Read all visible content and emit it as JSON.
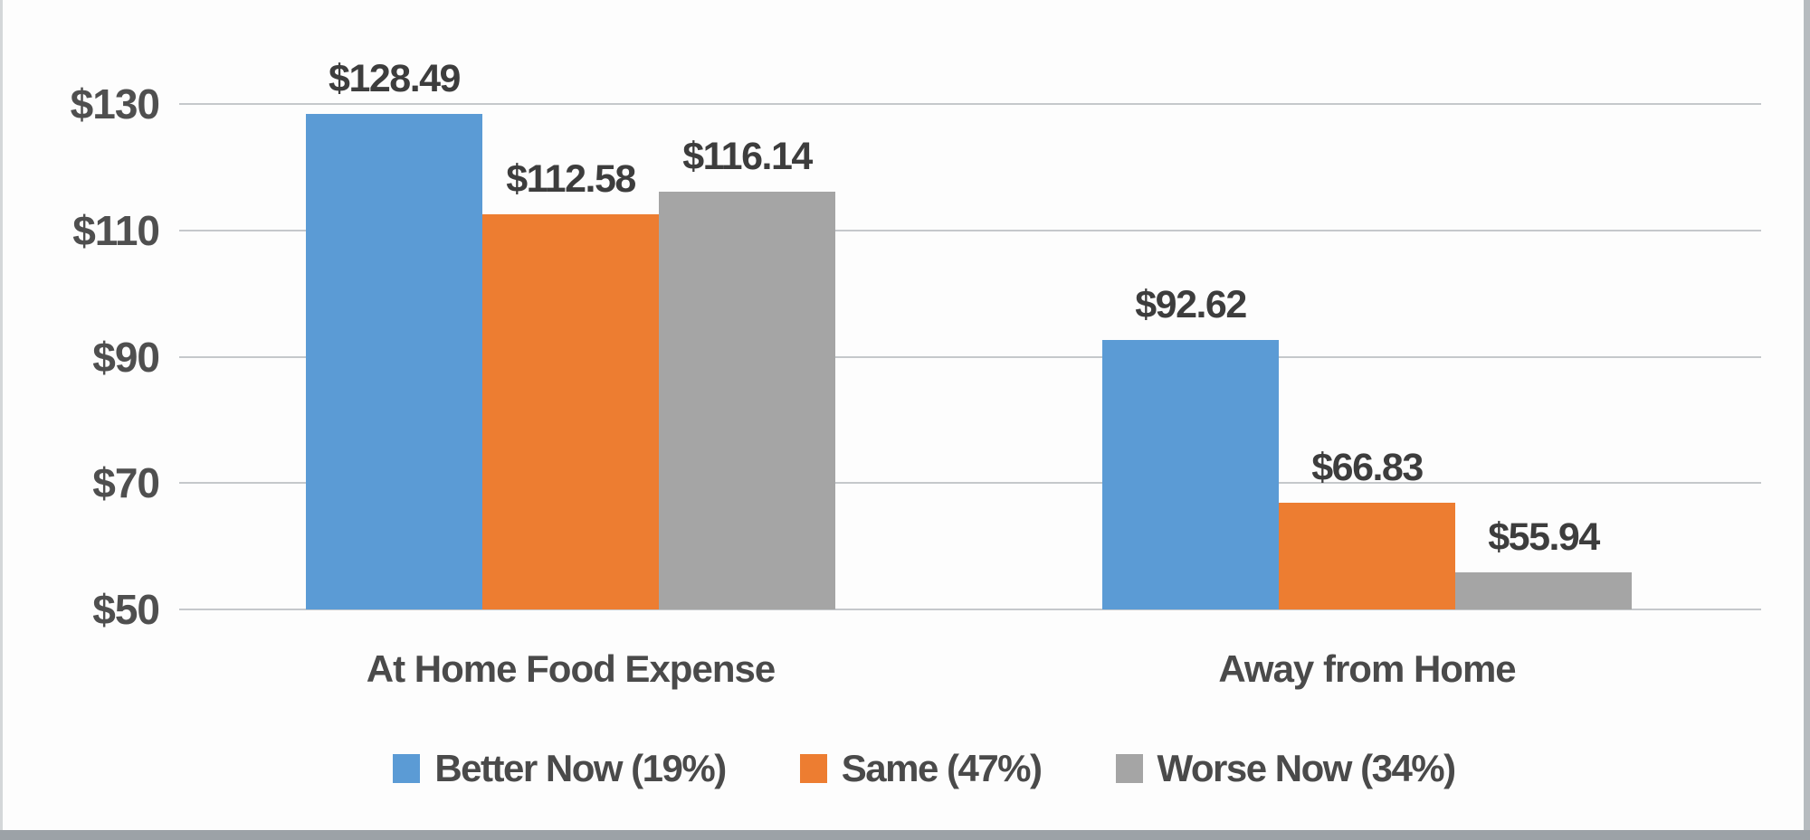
{
  "chart_data": {
    "type": "bar",
    "title": "",
    "categories": [
      "At Home Food Expense",
      "Away from Home"
    ],
    "series": [
      {
        "name": "Better Now (19%)",
        "color": "#5B9BD5",
        "values": [
          128.49,
          92.62
        ],
        "data_labels": [
          "$128.49",
          "$92.62"
        ]
      },
      {
        "name": "Same (47%)",
        "color": "#ED7D31",
        "values": [
          112.58,
          66.83
        ],
        "data_labels": [
          "$112.58",
          "$66.83"
        ]
      },
      {
        "name": "Worse Now (34%)",
        "color": "#A5A5A5",
        "values": [
          116.14,
          55.94
        ],
        "data_labels": [
          "$116.14",
          "$55.94"
        ]
      }
    ],
    "y_axis": {
      "min": 50,
      "max": 130,
      "tick_step": 20,
      "tick_labels": [
        "$130",
        "$110",
        "$90",
        "$70",
        "$50"
      ],
      "tick_values": [
        130,
        110,
        90,
        70,
        50
      ],
      "currency": "$"
    },
    "grid": true,
    "legend_position": "bottom",
    "colors": {
      "gridline": "#c5c8cb",
      "axis_text": "#4f4f4f",
      "data_label_text": "#3d3d3d",
      "background": "#fdfdfd"
    }
  }
}
